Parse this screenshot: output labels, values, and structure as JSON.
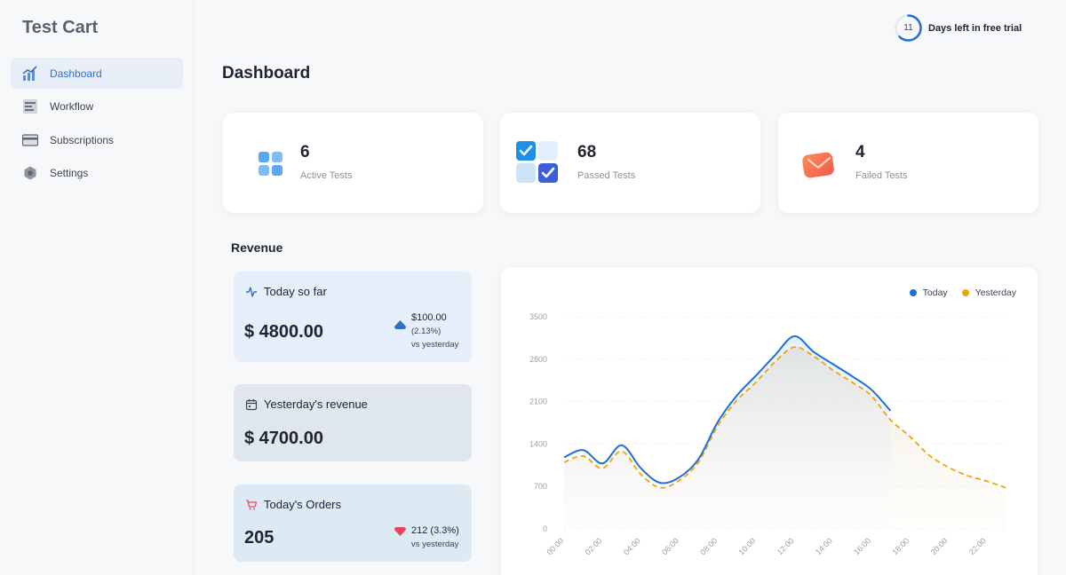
{
  "app": {
    "name": "Test Cart"
  },
  "sidebar": {
    "items": [
      {
        "label": "Dashboard",
        "icon": "chart-bar-icon",
        "active": true
      },
      {
        "label": "Workflow",
        "icon": "workflow-icon",
        "active": false
      },
      {
        "label": "Subscriptions",
        "icon": "credit-card-icon",
        "active": false
      },
      {
        "label": "Settings",
        "icon": "gear-icon",
        "active": false
      }
    ]
  },
  "trial": {
    "days_left": "11",
    "label": "Days left in free trial"
  },
  "page": {
    "title": "Dashboard"
  },
  "stats": [
    {
      "value": "6",
      "label": "Active Tests",
      "icon": "grid-icon"
    },
    {
      "value": "68",
      "label": "Passed Tests",
      "icon": "checkbox-icon"
    },
    {
      "value": "4",
      "label": "Failed Tests",
      "icon": "envelope-icon"
    }
  ],
  "revenue": {
    "title": "Revenue",
    "today": {
      "label": "Today so far",
      "amount": "$ 4800.00",
      "delta": "$100.00",
      "delta_pct": "(2.13%)",
      "compare": "vs yesterday",
      "trend": "up"
    },
    "yesterday": {
      "label": "Yesterday's revenue",
      "amount": "$ 4700.00"
    },
    "orders": {
      "label": "Today's Orders",
      "amount": "205",
      "delta": "212 (3.3%)",
      "compare": "vs yesterday",
      "trend": "down"
    }
  },
  "colors": {
    "accent": "#2f6fc9",
    "today": "#1e6fd9",
    "yesterday": "#f0a30a",
    "down": "#e8475b"
  },
  "chart_data": {
    "type": "line",
    "legend": [
      "Today",
      "Yesterday"
    ],
    "legend_position": "top-right",
    "x_ticks": [
      "00:00",
      "02:00",
      "04:00",
      "06:00",
      "08:00",
      "10:00",
      "12:00",
      "14:00",
      "16:00",
      "18:00",
      "20:00",
      "22:00"
    ],
    "y_ticks": [
      0,
      700,
      1400,
      2100,
      2800,
      3500
    ],
    "ylim": [
      0,
      3500
    ],
    "xlim": [
      0,
      23
    ],
    "series": [
      {
        "name": "Today",
        "x": [
          0,
          1,
          2,
          3,
          4,
          5,
          6,
          7,
          8,
          9,
          10,
          11,
          12,
          13,
          14,
          15,
          16,
          17
        ],
        "y": [
          1180,
          1300,
          1080,
          1380,
          1000,
          760,
          850,
          1150,
          1760,
          2200,
          2530,
          2870,
          3180,
          2920,
          2720,
          2520,
          2300,
          1950
        ]
      },
      {
        "name": "Yesterday",
        "x": [
          0,
          1,
          2,
          3,
          4,
          5,
          6,
          7,
          8,
          9,
          10,
          11,
          12,
          13,
          14,
          15,
          16,
          17,
          18,
          19,
          20,
          21,
          22,
          23
        ],
        "y": [
          1100,
          1200,
          1000,
          1280,
          900,
          680,
          800,
          1100,
          1700,
          2120,
          2420,
          2760,
          3000,
          2850,
          2620,
          2420,
          2200,
          1800,
          1530,
          1220,
          1020,
          880,
          790,
          680
        ]
      }
    ]
  }
}
